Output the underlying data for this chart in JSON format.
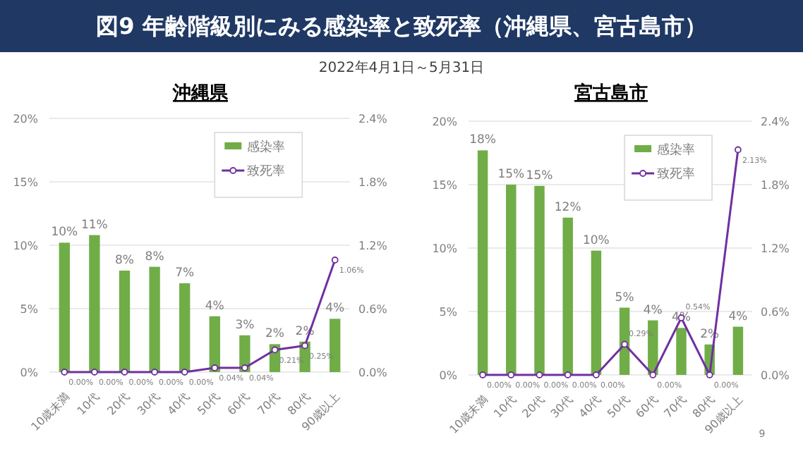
{
  "chart_data": [
    {
      "type": "bar",
      "title": "沖縄県",
      "annotations": [
        "図9 年齢階級別にみる感染率と致死率（沖縄県、宮古島市）",
        "2022年4月1日～5月31日"
      ],
      "categories": [
        "10歳未満",
        "10代",
        "20代",
        "30代",
        "40代",
        "50代",
        "60代",
        "70代",
        "80代",
        "90歳以上"
      ],
      "ylim": [
        0,
        20
      ],
      "yticks": [
        {
          "value": 0,
          "label": "0%"
        },
        {
          "value": 5,
          "label": "5%"
        },
        {
          "value": 10,
          "label": "10%"
        },
        {
          "value": 15,
          "label": "15%"
        },
        {
          "value": 20,
          "label": "20%"
        }
      ],
      "y2lim": [
        0,
        2.4
      ],
      "y2ticks": [
        {
          "value": 0,
          "label": "0.0%"
        },
        {
          "value": 0.6,
          "label": "0.6%"
        },
        {
          "value": 1.2,
          "label": "1.2%"
        },
        {
          "value": 1.8,
          "label": "1.8%"
        },
        {
          "value": 2.4,
          "label": "2.4%"
        }
      ],
      "grid": "y",
      "legend": "top right",
      "marker": "circle",
      "line_style": "solid",
      "series": [
        {
          "name": "感染率",
          "color": "#70ad47",
          "values": [
            10.2,
            10.8,
            8.0,
            8.3,
            7.0,
            4.4,
            2.9,
            2.2,
            2.4,
            4.2
          ],
          "value_labels": [
            "10%",
            "11%",
            "8%",
            "8%",
            "7%",
            "4%",
            "3%",
            "2%",
            "2%",
            "4%"
          ]
        },
        {
          "name": "致死率",
          "type": "line",
          "axis": "y2",
          "color": "#7030a0",
          "values": [
            0.0,
            0.0,
            0.0,
            0.0,
            0.0,
            0.04,
            0.04,
            0.21,
            0.25,
            1.06
          ],
          "value_labels": [
            "0.00%",
            "0.00%",
            "0.00%",
            "0.00%",
            "0.00%",
            "0.04%",
            "0.04%",
            "0.21%",
            "0.25%",
            "1.06%"
          ]
        }
      ]
    },
    {
      "type": "bar",
      "title": "宮古島市",
      "annotations": [
        "9"
      ],
      "categories": [
        "10歳未満",
        "10代",
        "20代",
        "30代",
        "40代",
        "50代",
        "60代",
        "70代",
        "80代",
        "90歳以上"
      ],
      "ylim": [
        0,
        20
      ],
      "yticks": [
        {
          "value": 0,
          "label": "0%"
        },
        {
          "value": 5,
          "label": "5%"
        },
        {
          "value": 10,
          "label": "10%"
        },
        {
          "value": 15,
          "label": "15%"
        },
        {
          "value": 20,
          "label": "20%"
        }
      ],
      "y2lim": [
        0,
        2.4
      ],
      "y2ticks": [
        {
          "value": 0,
          "label": "0.0%"
        },
        {
          "value": 0.6,
          "label": "0.6%"
        },
        {
          "value": 1.2,
          "label": "1.2%"
        },
        {
          "value": 1.8,
          "label": "1.8%"
        },
        {
          "value": 2.4,
          "label": "2.4%"
        }
      ],
      "grid": "y",
      "legend": "top right",
      "marker": "circle",
      "line_style": "solid",
      "series": [
        {
          "name": "感染率",
          "color": "#70ad47",
          "values": [
            17.7,
            15.0,
            14.9,
            12.4,
            9.8,
            5.3,
            4.3,
            3.7,
            2.4,
            3.8
          ],
          "value_labels": [
            "18%",
            "15%",
            "15%",
            "12%",
            "10%",
            "5%",
            "4%",
            "4%",
            "2%",
            "4%"
          ]
        },
        {
          "name": "致死率",
          "type": "line",
          "axis": "y2",
          "color": "#7030a0",
          "values": [
            0.0,
            0.0,
            0.0,
            0.0,
            0.0,
            0.29,
            0.0,
            0.54,
            0.0,
            2.13
          ],
          "value_labels": [
            "0.00%",
            "0.00%",
            "0.00%",
            "0.00%",
            "0.00%",
            "0.29%",
            "0.00%",
            "0.54%",
            "0.00%",
            "2.13%"
          ]
        }
      ]
    }
  ]
}
